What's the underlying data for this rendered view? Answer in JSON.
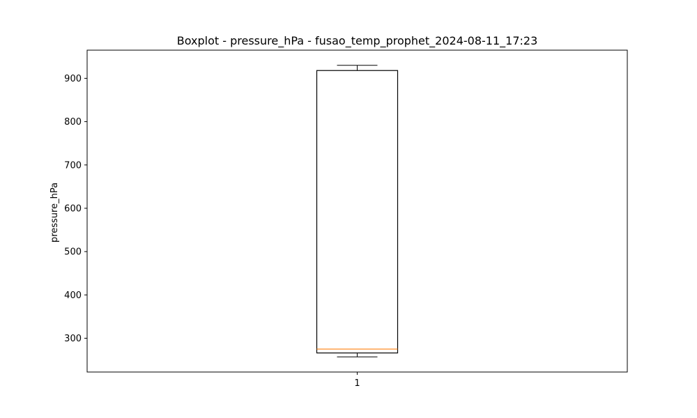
{
  "chart_data": {
    "type": "boxplot",
    "title": "Boxplot - pressure_hPa - fusao_temp_prophet_2024-08-11_17:23",
    "xlabel": "",
    "ylabel": "pressure_hPa",
    "categories": [
      "1"
    ],
    "boxes": [
      {
        "category": "1",
        "whisker_low": 257,
        "q1": 266,
        "median": 275,
        "q3": 918,
        "whisker_high": 930
      }
    ],
    "ylim": [
      222,
      965
    ],
    "yticks": [
      300,
      400,
      500,
      600,
      700,
      800,
      900
    ],
    "grid": false,
    "colors": {
      "box": "#000000",
      "median": "#ff7f0e",
      "whisker": "#000000"
    }
  }
}
